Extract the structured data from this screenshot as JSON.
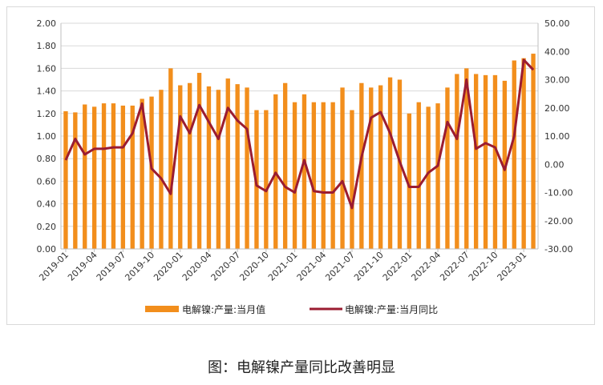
{
  "caption": "图：电解镍产量同比改善明显",
  "colors": {
    "bars": "#f28e1c",
    "line": "#9b1c31",
    "grid": "#d9d9d9",
    "axis": "#bfbfbf"
  },
  "chart_data": {
    "type": "bar+line",
    "categories": [
      "2019-01",
      "2019-02",
      "2019-03",
      "2019-04",
      "2019-05",
      "2019-06",
      "2019-07",
      "2019-08",
      "2019-09",
      "2019-10",
      "2019-11",
      "2019-12",
      "2020-01",
      "2020-02",
      "2020-03",
      "2020-04",
      "2020-05",
      "2020-06",
      "2020-07",
      "2020-08",
      "2020-09",
      "2020-10",
      "2020-11",
      "2020-12",
      "2021-01",
      "2021-02",
      "2021-03",
      "2021-04",
      "2021-05",
      "2021-06",
      "2021-07",
      "2021-08",
      "2021-09",
      "2021-10",
      "2021-11",
      "2021-12",
      "2022-01",
      "2022-02",
      "2022-03",
      "2022-04",
      "2022-05",
      "2022-06",
      "2022-07",
      "2022-08",
      "2022-09",
      "2022-10",
      "2022-11",
      "2022-12",
      "2023-01",
      "2023-02"
    ],
    "x_tick_labels": [
      "2019-01",
      "2019-04",
      "2019-07",
      "2019-10",
      "2020-01",
      "2020-04",
      "2020-07",
      "2020-10",
      "2021-01",
      "2021-04",
      "2021-07",
      "2021-10",
      "2022-01",
      "2022-04",
      "2022-07",
      "2022-10",
      "2023-01"
    ],
    "left_axis": {
      "min": 0,
      "max": 2.0,
      "ticks": [
        "0.00",
        "0.20",
        "0.40",
        "0.60",
        "0.80",
        "1.00",
        "1.20",
        "1.40",
        "1.60",
        "1.80",
        "2.00"
      ]
    },
    "right_axis": {
      "min": -30,
      "max": 50,
      "ticks": [
        "-30.00",
        "-20.00",
        "-10.00",
        "0.00",
        "10.00",
        "20.00",
        "30.00",
        "40.00",
        "50.00"
      ]
    },
    "series": [
      {
        "name": "电解镍:产量:当月值",
        "type": "bar",
        "axis": "left",
        "values": [
          1.22,
          1.21,
          1.28,
          1.26,
          1.29,
          1.29,
          1.27,
          1.27,
          1.33,
          1.35,
          1.41,
          1.6,
          1.45,
          1.47,
          1.56,
          1.44,
          1.41,
          1.51,
          1.46,
          1.43,
          1.23,
          1.23,
          1.37,
          1.47,
          1.3,
          1.37,
          1.3,
          1.3,
          1.3,
          1.43,
          1.23,
          1.47,
          1.43,
          1.45,
          1.52,
          1.5,
          1.2,
          1.3,
          1.26,
          1.29,
          1.43,
          1.55,
          1.6,
          1.55,
          1.54,
          1.54,
          1.49,
          1.67,
          1.69,
          1.73
        ]
      },
      {
        "name": "电解镍:产量:当月同比",
        "type": "line",
        "axis": "right",
        "values": [
          1.5,
          9,
          3.5,
          5.5,
          5.5,
          6,
          6,
          11,
          21.5,
          -1.5,
          -5,
          -10.5,
          17,
          11,
          21,
          15,
          9,
          20,
          15.5,
          12.5,
          -7.5,
          -9.5,
          -3,
          -8,
          -10,
          1.5,
          -9.5,
          -10,
          -10,
          -6,
          -15.5,
          2.5,
          16.5,
          18.5,
          11,
          1,
          -8,
          -8,
          -3,
          -0.5,
          15,
          9,
          30,
          5.5,
          7.5,
          6,
          -2,
          10,
          37,
          33.5
        ]
      }
    ],
    "legend_position": "bottom",
    "grid": "horizontal"
  }
}
